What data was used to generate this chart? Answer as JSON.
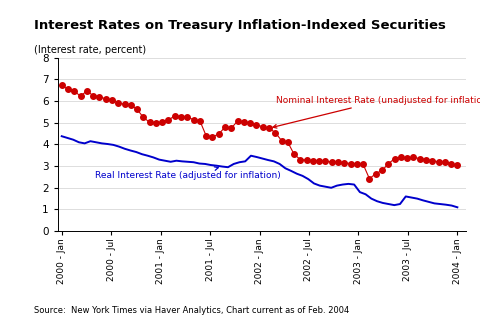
{
  "title": "Interest Rates on Treasury Inflation-Indexed Securities",
  "ylabel": "(Interest rate, percent)",
  "source": "Source:  New York Times via Haver Analytics, Chart current as of Feb. 2004",
  "ylim": [
    0,
    8
  ],
  "yticks": [
    0,
    1,
    2,
    3,
    4,
    5,
    6,
    7,
    8
  ],
  "xtick_labels": [
    "2000 - Jan",
    "2000 - Jul",
    "2001 - Jan",
    "2001 - Jul",
    "2002 - Jan",
    "2002 - Jul",
    "2003 - Jan",
    "2003 - Jul",
    "2004 - Jan"
  ],
  "nominal_color": "#cc0000",
  "real_color": "#0000cc",
  "nominal_label": "Nominal Interest Rate (unadjusted for inflation)",
  "real_label": "Real Interest Rate (adjusted for inflation)",
  "background_color": "#ffffff",
  "nominal_data": [
    6.73,
    6.54,
    6.47,
    6.22,
    6.48,
    6.25,
    6.21,
    6.1,
    6.03,
    5.92,
    5.85,
    5.82,
    5.62,
    5.25,
    5.02,
    4.97,
    5.05,
    5.12,
    5.33,
    5.28,
    5.27,
    5.14,
    5.09,
    4.4,
    4.35,
    4.48,
    4.8,
    4.75,
    5.08,
    5.05,
    4.98,
    4.9,
    4.82,
    4.75,
    4.55,
    4.18,
    4.1,
    3.55,
    3.3,
    3.28,
    3.25,
    3.25,
    3.22,
    3.2,
    3.18,
    3.15,
    3.12,
    3.1,
    3.08,
    2.42,
    2.65,
    2.8,
    3.1,
    3.35,
    3.42,
    3.38,
    3.4,
    3.35,
    3.3,
    3.25,
    3.2,
    3.18,
    3.1,
    3.05
  ],
  "real_data": [
    4.38,
    4.3,
    4.22,
    4.1,
    4.05,
    4.15,
    4.1,
    4.05,
    4.02,
    3.98,
    3.9,
    3.8,
    3.72,
    3.65,
    3.55,
    3.48,
    3.4,
    3.3,
    3.25,
    3.2,
    3.25,
    3.22,
    3.2,
    3.18,
    3.12,
    3.1,
    3.05,
    3.02,
    2.98,
    2.95,
    3.1,
    3.18,
    3.22,
    3.48,
    3.42,
    3.35,
    3.28,
    3.22,
    3.1,
    2.9,
    2.78,
    2.65,
    2.55,
    2.4,
    2.2,
    2.1,
    2.05,
    2.0,
    2.1,
    2.15,
    2.18,
    2.15,
    1.8,
    1.7,
    1.5,
    1.38,
    1.3,
    1.25,
    1.2,
    1.25,
    1.6,
    1.55,
    1.5,
    1.42,
    1.35,
    1.28,
    1.25,
    1.22,
    1.18,
    1.1
  ]
}
